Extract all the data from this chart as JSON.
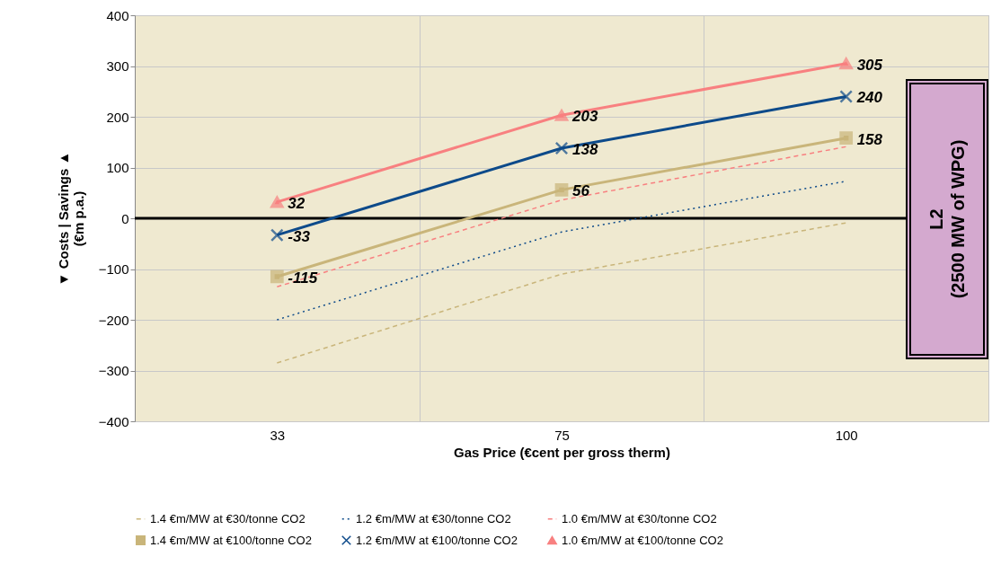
{
  "chart_data": {
    "type": "line",
    "xlabel": "Gas Price (€cent per gross therm)",
    "ylabel": "▼ Costs | Savings ▲\n(€m p.a.)",
    "categories": [
      "33",
      "75",
      "100"
    ],
    "series": [
      {
        "name": "1.4 €m/MW at €30/tonne CO2",
        "color": "#c9b57a",
        "values": [
          -285,
          -110,
          -9
        ],
        "line_style": "dashed",
        "marker": "none"
      },
      {
        "name": "1.2 €m/MW at €30/tonne CO2",
        "color": "#0d4a8a",
        "values": [
          -200,
          -27,
          73
        ],
        "line_style": "dotted",
        "marker": "none"
      },
      {
        "name": "1.0 €m/MW at €30/tonne CO2",
        "color": "#f88080",
        "values": [
          -135,
          36,
          141
        ],
        "line_style": "dashed",
        "marker": "none"
      },
      {
        "name": "1.4 €m/MW at €100/tonne CO2",
        "color": "#c9b57a",
        "values": [
          -115,
          56,
          158
        ],
        "line_style": "solid",
        "marker": "square",
        "value_labels": [
          "-115",
          "56",
          "158"
        ]
      },
      {
        "name": "1.2 €m/MW at €100/tonne CO2",
        "color": "#0d4a8a",
        "values": [
          -33,
          138,
          240
        ],
        "line_style": "solid",
        "marker": "cross",
        "value_labels": [
          "-33",
          "138",
          "240"
        ]
      },
      {
        "name": "1.0 €m/MW at €100/tonne CO2",
        "color": "#f88080",
        "values": [
          32,
          203,
          305
        ],
        "line_style": "solid",
        "marker": "triangle",
        "value_labels": [
          "32",
          "203",
          "305"
        ]
      }
    ],
    "ylim": [
      -400,
      400
    ],
    "yticks": [
      -400,
      -300,
      -200,
      -100,
      0,
      100,
      200,
      300,
      400
    ],
    "grid": true,
    "legend": "bottom",
    "ref_lines": [
      {
        "axis": "y",
        "value": 0,
        "color": "#000000"
      }
    ],
    "annotations": [
      "L2\n(2500 MW of WPG)"
    ]
  }
}
